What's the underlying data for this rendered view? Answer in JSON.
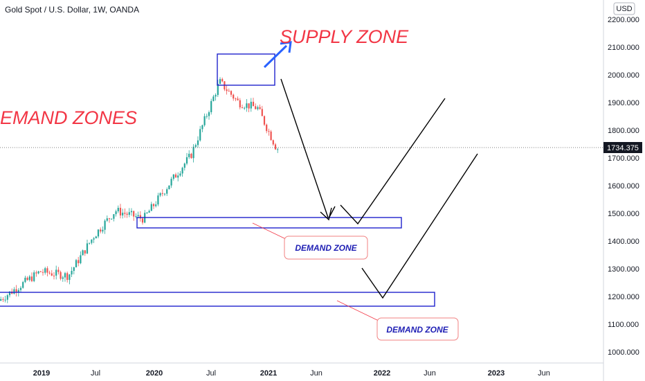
{
  "header": {
    "title": "Gold Spot / U.S. Dollar, 1W, OANDA",
    "currency": "USD"
  },
  "annotations": {
    "supply_zone": "SUPPLY ZONE",
    "demand_zones": "EMAND ZONES",
    "demand_zone_1": "DEMAND ZONE",
    "demand_zone_2": "DEMAND ZONE"
  },
  "colors": {
    "up": "#26a69a",
    "down": "#ef5350",
    "zone_border": "#1e22cc",
    "annotation_red": "#f23645",
    "arrow_blue": "#2962ff"
  },
  "chart_data": {
    "type": "candlestick",
    "title": "Gold Spot / U.S. Dollar, 1W, OANDA",
    "interval": "1W",
    "yaxis_labels": [
      "2200.000",
      "2100.000",
      "2000.000",
      "1900.000",
      "1800.000",
      "1700.000",
      "1600.000",
      "1500.000",
      "1400.000",
      "1300.000",
      "1200.000",
      "1100.000",
      "1000.000"
    ],
    "ylim": [
      960,
      2240
    ],
    "xaxis_labels": [
      {
        "text": "2019",
        "date": "2019-01",
        "bold": true
      },
      {
        "text": "Jul",
        "date": "2019-07",
        "bold": false
      },
      {
        "text": "2020",
        "date": "2020-01",
        "bold": true
      },
      {
        "text": "Jul",
        "date": "2020-07",
        "bold": false
      },
      {
        "text": "2021",
        "date": "2021-01",
        "bold": true
      },
      {
        "text": "Jun",
        "date": "2021-06",
        "bold": false
      },
      {
        "text": "2022",
        "date": "2022-01",
        "bold": true
      },
      {
        "text": "Jun",
        "date": "2022-06",
        "bold": false
      },
      {
        "text": "2023",
        "date": "2023-01",
        "bold": true
      },
      {
        "text": "Jun",
        "date": "2023-06",
        "bold": false
      }
    ],
    "last_price": "1734.375",
    "last_price_value": 1734.375,
    "series_close_estimates": [
      {
        "date": "2018-10",
        "close": 1185
      },
      {
        "date": "2019-01",
        "close": 1290
      },
      {
        "date": "2019-04",
        "close": 1275
      },
      {
        "date": "2019-07",
        "close": 1420
      },
      {
        "date": "2019-09",
        "close": 1510
      },
      {
        "date": "2019-12",
        "close": 1480
      },
      {
        "date": "2020-03",
        "close": 1620
      },
      {
        "date": "2020-05",
        "close": 1710
      },
      {
        "date": "2020-08",
        "close": 1975
      },
      {
        "date": "2020-10",
        "close": 1900
      },
      {
        "date": "2020-12",
        "close": 1880
      },
      {
        "date": "2021-02",
        "close": 1734.375
      }
    ],
    "zones": [
      {
        "name": "SUPPLY ZONE",
        "top": 2075,
        "bottom": 1962
      },
      {
        "name": "DEMAND ZONE",
        "top": 1482,
        "bottom": 1443
      },
      {
        "name": "DEMAND ZONE",
        "top": 1212,
        "bottom": 1163
      }
    ]
  }
}
